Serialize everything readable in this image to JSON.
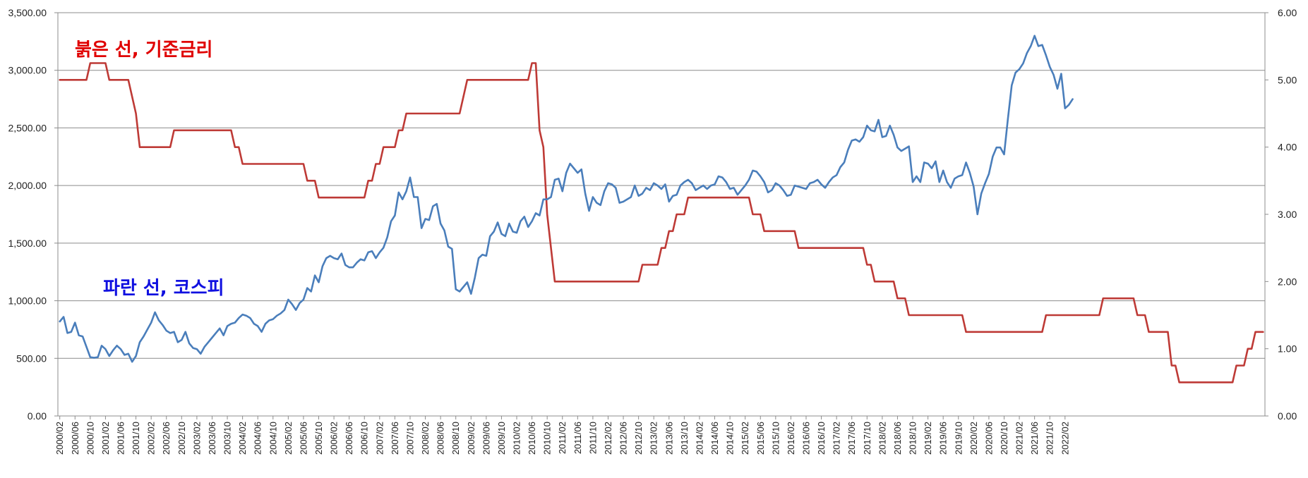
{
  "chart_data": {
    "type": "line",
    "title": "",
    "xlabel": "",
    "ylabel": "",
    "y_left": {
      "min": 0,
      "max": 3500,
      "ticks": [
        "0.00",
        "500.00",
        "1,000.00",
        "1,500.00",
        "2,000.00",
        "2,500.00",
        "3,000.00",
        "3,500.00"
      ]
    },
    "y_right": {
      "min": 0,
      "max": 6,
      "ticks": [
        "0.00",
        "1.00",
        "2.00",
        "3.00",
        "4.00",
        "5.00",
        "6.00"
      ]
    },
    "grid": true,
    "legend": "none",
    "x_tick_labels": [
      "2000/02",
      "2000/06",
      "2000/10",
      "2001/02",
      "2001/06",
      "2001/10",
      "2002/02",
      "2002/06",
      "2002/10",
      "2003/02",
      "2003/06",
      "2003/10",
      "2004/02",
      "2004/06",
      "2004/10",
      "2005/02",
      "2005/06",
      "2005/10",
      "2006/02",
      "2006/06",
      "2006/10",
      "2007/02",
      "2007/06",
      "2007/10",
      "2008/02",
      "2008/06",
      "2008/10",
      "2009/02",
      "2009/06",
      "2009/10",
      "2010/02",
      "2010/06",
      "2010/10",
      "2011/02",
      "2011/06",
      "2011/10",
      "2012/02",
      "2012/06",
      "2012/10",
      "2013/02",
      "2013/06",
      "2013/10",
      "2014/02",
      "2014/06",
      "2014/10",
      "2015/02",
      "2015/06",
      "2015/10",
      "2016/02",
      "2016/06",
      "2016/10",
      "2017/02",
      "2017/06",
      "2017/10",
      "2018/02",
      "2018/06",
      "2018/10",
      "2019/02",
      "2019/06",
      "2019/10",
      "2020/02",
      "2020/06",
      "2020/10",
      "2021/02",
      "2021/06",
      "2021/10",
      "2022/02"
    ],
    "annotations": [
      {
        "text": "붉은 선, 기준금리",
        "color": "#e00000"
      },
      {
        "text": "파란 선, 코스피",
        "color": "#1010e0"
      }
    ],
    "series": [
      {
        "axis": "right",
        "color": "#be3a36",
        "start": "2000/02",
        "step_months": 1,
        "values": [
          5.0,
          5.0,
          5.0,
          5.0,
          5.0,
          5.0,
          5.0,
          5.0,
          5.25,
          5.25,
          5.25,
          5.25,
          5.25,
          5.0,
          5.0,
          5.0,
          5.0,
          5.0,
          5.0,
          4.75,
          4.5,
          4.0,
          4.0,
          4.0,
          4.0,
          4.0,
          4.0,
          4.0,
          4.0,
          4.0,
          4.25,
          4.25,
          4.25,
          4.25,
          4.25,
          4.25,
          4.25,
          4.25,
          4.25,
          4.25,
          4.25,
          4.25,
          4.25,
          4.25,
          4.25,
          4.25,
          4.0,
          4.0,
          3.75,
          3.75,
          3.75,
          3.75,
          3.75,
          3.75,
          3.75,
          3.75,
          3.75,
          3.75,
          3.75,
          3.75,
          3.75,
          3.75,
          3.75,
          3.75,
          3.75,
          3.5,
          3.5,
          3.5,
          3.25,
          3.25,
          3.25,
          3.25,
          3.25,
          3.25,
          3.25,
          3.25,
          3.25,
          3.25,
          3.25,
          3.25,
          3.25,
          3.5,
          3.5,
          3.75,
          3.75,
          4.0,
          4.0,
          4.0,
          4.0,
          4.25,
          4.25,
          4.5,
          4.5,
          4.5,
          4.5,
          4.5,
          4.5,
          4.5,
          4.5,
          4.5,
          4.5,
          4.5,
          4.5,
          4.5,
          4.5,
          4.5,
          4.75,
          5.0,
          5.0,
          5.0,
          5.0,
          5.0,
          5.0,
          5.0,
          5.0,
          5.0,
          5.0,
          5.0,
          5.0,
          5.0,
          5.0,
          5.0,
          5.0,
          5.0,
          5.25,
          5.25,
          4.25,
          4.0,
          3.0,
          2.5,
          2.0,
          2.0,
          2.0,
          2.0,
          2.0,
          2.0,
          2.0,
          2.0,
          2.0,
          2.0,
          2.0,
          2.0,
          2.0,
          2.0,
          2.0,
          2.0,
          2.0,
          2.0,
          2.0,
          2.0,
          2.0,
          2.0,
          2.0,
          2.25,
          2.25,
          2.25,
          2.25,
          2.25,
          2.5,
          2.5,
          2.75,
          2.75,
          3.0,
          3.0,
          3.0,
          3.25,
          3.25,
          3.25,
          3.25,
          3.25,
          3.25,
          3.25,
          3.25,
          3.25,
          3.25,
          3.25,
          3.25,
          3.25,
          3.25,
          3.25,
          3.25,
          3.25,
          3.0,
          3.0,
          3.0,
          2.75,
          2.75,
          2.75,
          2.75,
          2.75,
          2.75,
          2.75,
          2.75,
          2.75,
          2.5,
          2.5,
          2.5,
          2.5,
          2.5,
          2.5,
          2.5,
          2.5,
          2.5,
          2.5,
          2.5,
          2.5,
          2.5,
          2.5,
          2.5,
          2.5,
          2.5,
          2.5,
          2.25,
          2.25,
          2.0,
          2.0,
          2.0,
          2.0,
          2.0,
          2.0,
          1.75,
          1.75,
          1.75,
          1.5,
          1.5,
          1.5,
          1.5,
          1.5,
          1.5,
          1.5,
          1.5,
          1.5,
          1.5,
          1.5,
          1.5,
          1.5,
          1.5,
          1.5,
          1.25,
          1.25,
          1.25,
          1.25,
          1.25,
          1.25,
          1.25,
          1.25,
          1.25,
          1.25,
          1.25,
          1.25,
          1.25,
          1.25,
          1.25,
          1.25,
          1.25,
          1.25,
          1.25,
          1.25,
          1.25,
          1.5,
          1.5,
          1.5,
          1.5,
          1.5,
          1.5,
          1.5,
          1.5,
          1.5,
          1.5,
          1.5,
          1.5,
          1.5,
          1.5,
          1.5,
          1.75,
          1.75,
          1.75,
          1.75,
          1.75,
          1.75,
          1.75,
          1.75,
          1.75,
          1.5,
          1.5,
          1.5,
          1.25,
          1.25,
          1.25,
          1.25,
          1.25,
          1.25,
          0.75,
          0.75,
          0.5,
          0.5,
          0.5,
          0.5,
          0.5,
          0.5,
          0.5,
          0.5,
          0.5,
          0.5,
          0.5,
          0.5,
          0.5,
          0.5,
          0.5,
          0.75,
          0.75,
          0.75,
          1.0,
          1.0,
          1.25,
          1.25,
          1.25
        ]
      },
      {
        "axis": "left",
        "color": "#4a7ebb",
        "start": "2000/02",
        "step_months": 1,
        "values": [
          820,
          860,
          720,
          730,
          810,
          700,
          690,
          600,
          510,
          505,
          510,
          610,
          580,
          520,
          570,
          610,
          580,
          530,
          540,
          470,
          520,
          640,
          690,
          750,
          810,
          900,
          830,
          790,
          740,
          720,
          730,
          640,
          660,
          730,
          630,
          590,
          580,
          540,
          600,
          640,
          680,
          720,
          760,
          700,
          780,
          800,
          810,
          850,
          880,
          870,
          850,
          800,
          780,
          730,
          800,
          830,
          840,
          870,
          890,
          920,
          1010,
          970,
          920,
          980,
          1010,
          1110,
          1080,
          1220,
          1160,
          1300,
          1370,
          1390,
          1370,
          1360,
          1410,
          1310,
          1290,
          1290,
          1330,
          1360,
          1350,
          1420,
          1430,
          1370,
          1420,
          1460,
          1550,
          1690,
          1740,
          1940,
          1880,
          1950,
          2070,
          1900,
          1900,
          1630,
          1710,
          1700,
          1820,
          1840,
          1670,
          1610,
          1470,
          1450,
          1100,
          1080,
          1120,
          1160,
          1060,
          1200,
          1370,
          1400,
          1390,
          1560,
          1600,
          1680,
          1580,
          1560,
          1670,
          1600,
          1590,
          1690,
          1730,
          1640,
          1690,
          1760,
          1740,
          1880,
          1880,
          1900,
          2050,
          2060,
          1950,
          2110,
          2190,
          2150,
          2110,
          2140,
          1930,
          1780,
          1900,
          1850,
          1830,
          1950,
          2020,
          2010,
          1980,
          1850,
          1860,
          1880,
          1900,
          2000,
          1910,
          1930,
          1980,
          1960,
          2020,
          2000,
          1970,
          2010,
          1860,
          1910,
          1920,
          2000,
          2030,
          2050,
          2020,
          1960,
          1980,
          2000,
          1970,
          2000,
          2010,
          2080,
          2070,
          2030,
          1970,
          1980,
          1920,
          1960,
          2000,
          2050,
          2130,
          2120,
          2080,
          2030,
          1940,
          1960,
          2020,
          2000,
          1960,
          1910,
          1920,
          2000,
          1990,
          1980,
          1970,
          2020,
          2030,
          2050,
          2010,
          1980,
          2030,
          2070,
          2090,
          2160,
          2200,
          2310,
          2390,
          2400,
          2380,
          2420,
          2520,
          2480,
          2470,
          2570,
          2420,
          2430,
          2520,
          2440,
          2330,
          2300,
          2320,
          2340,
          2030,
          2080,
          2030,
          2200,
          2190,
          2150,
          2210,
          2030,
          2130,
          2030,
          1980,
          2060,
          2080,
          2090,
          2200,
          2110,
          1990,
          1750,
          1930,
          2020,
          2100,
          2250,
          2330,
          2330,
          2270,
          2580,
          2870,
          2980,
          3010,
          3060,
          3150,
          3210,
          3300,
          3210,
          3220,
          3130,
          3030,
          2960,
          2840,
          2970,
          2670,
          2700,
          2750
        ]
      }
    ]
  }
}
